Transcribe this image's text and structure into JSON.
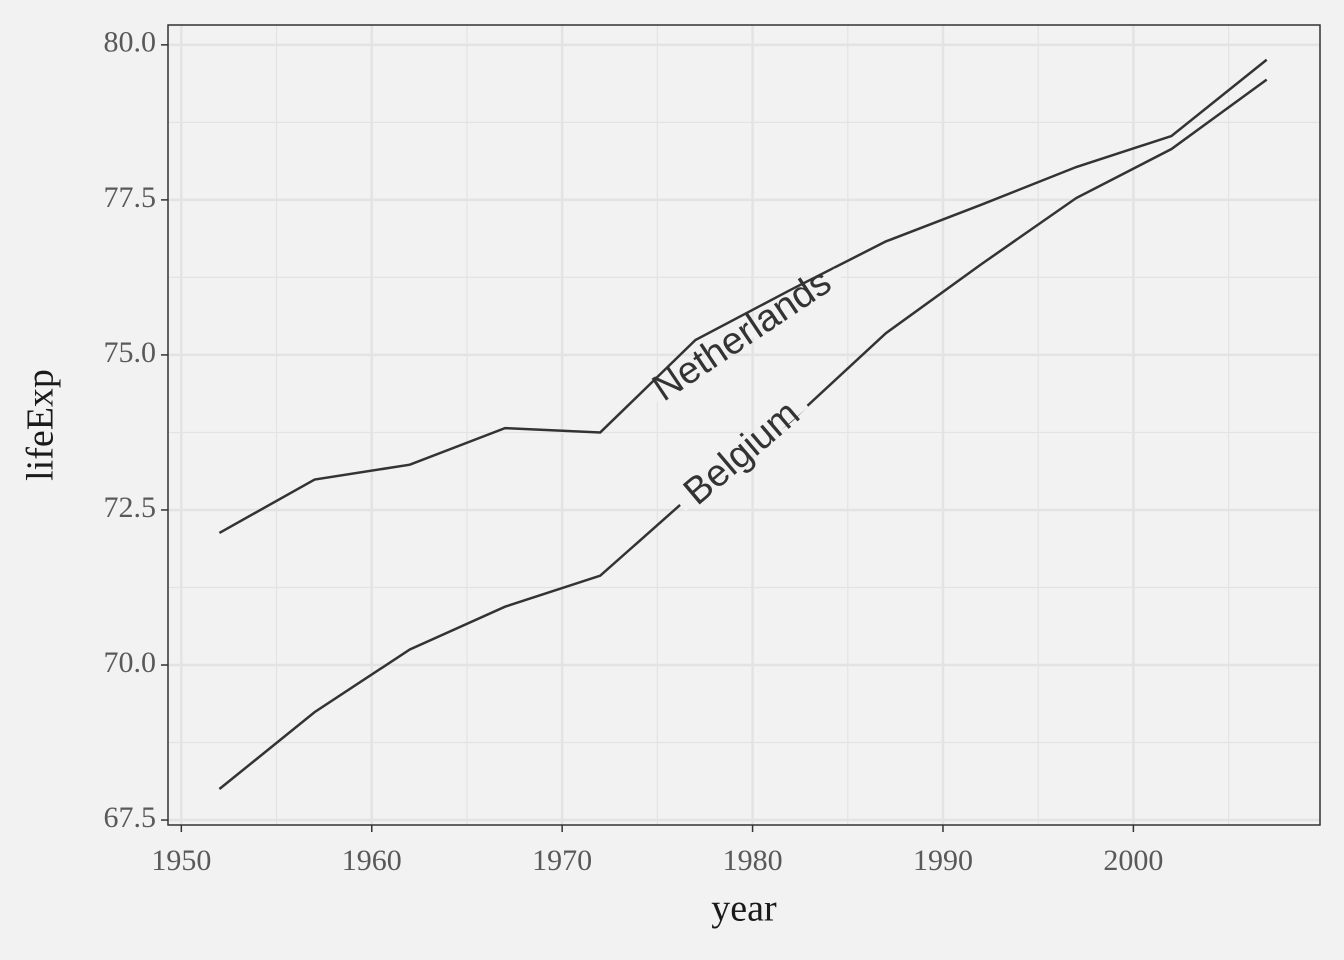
{
  "chart_data": {
    "type": "line",
    "x_label": "year",
    "y_label": "lifeExp",
    "x": [
      1952,
      1957,
      1962,
      1967,
      1972,
      1977,
      1982,
      1987,
      1992,
      1997,
      2002,
      2007
    ],
    "series": [
      {
        "name": "Netherlands",
        "color": "#333333",
        "values": [
          72.13,
          72.99,
          73.23,
          73.82,
          73.75,
          75.24,
          76.05,
          76.83,
          77.42,
          78.03,
          78.53,
          79.76
        ]
      },
      {
        "name": "Belgium",
        "color": "#333333",
        "values": [
          68.0,
          69.24,
          70.25,
          70.94,
          71.44,
          72.8,
          73.93,
          75.35,
          76.46,
          77.53,
          78.32,
          79.44
        ]
      }
    ],
    "xlim": [
      1949.3,
      2009.8
    ],
    "xticks": [
      1950,
      1960,
      1970,
      1980,
      1990,
      2000
    ],
    "ylim": [
      67.42,
      80.32
    ],
    "yticks": [
      {
        "value": 67.5,
        "label": "67.5"
      },
      {
        "value": 70,
        "label": "70.0"
      },
      {
        "value": 72.5,
        "label": "72.5"
      },
      {
        "value": 75,
        "label": "75.0"
      },
      {
        "value": 77.5,
        "label": "77.5"
      },
      {
        "value": 80,
        "label": "80.0"
      }
    ],
    "grid": true
  }
}
